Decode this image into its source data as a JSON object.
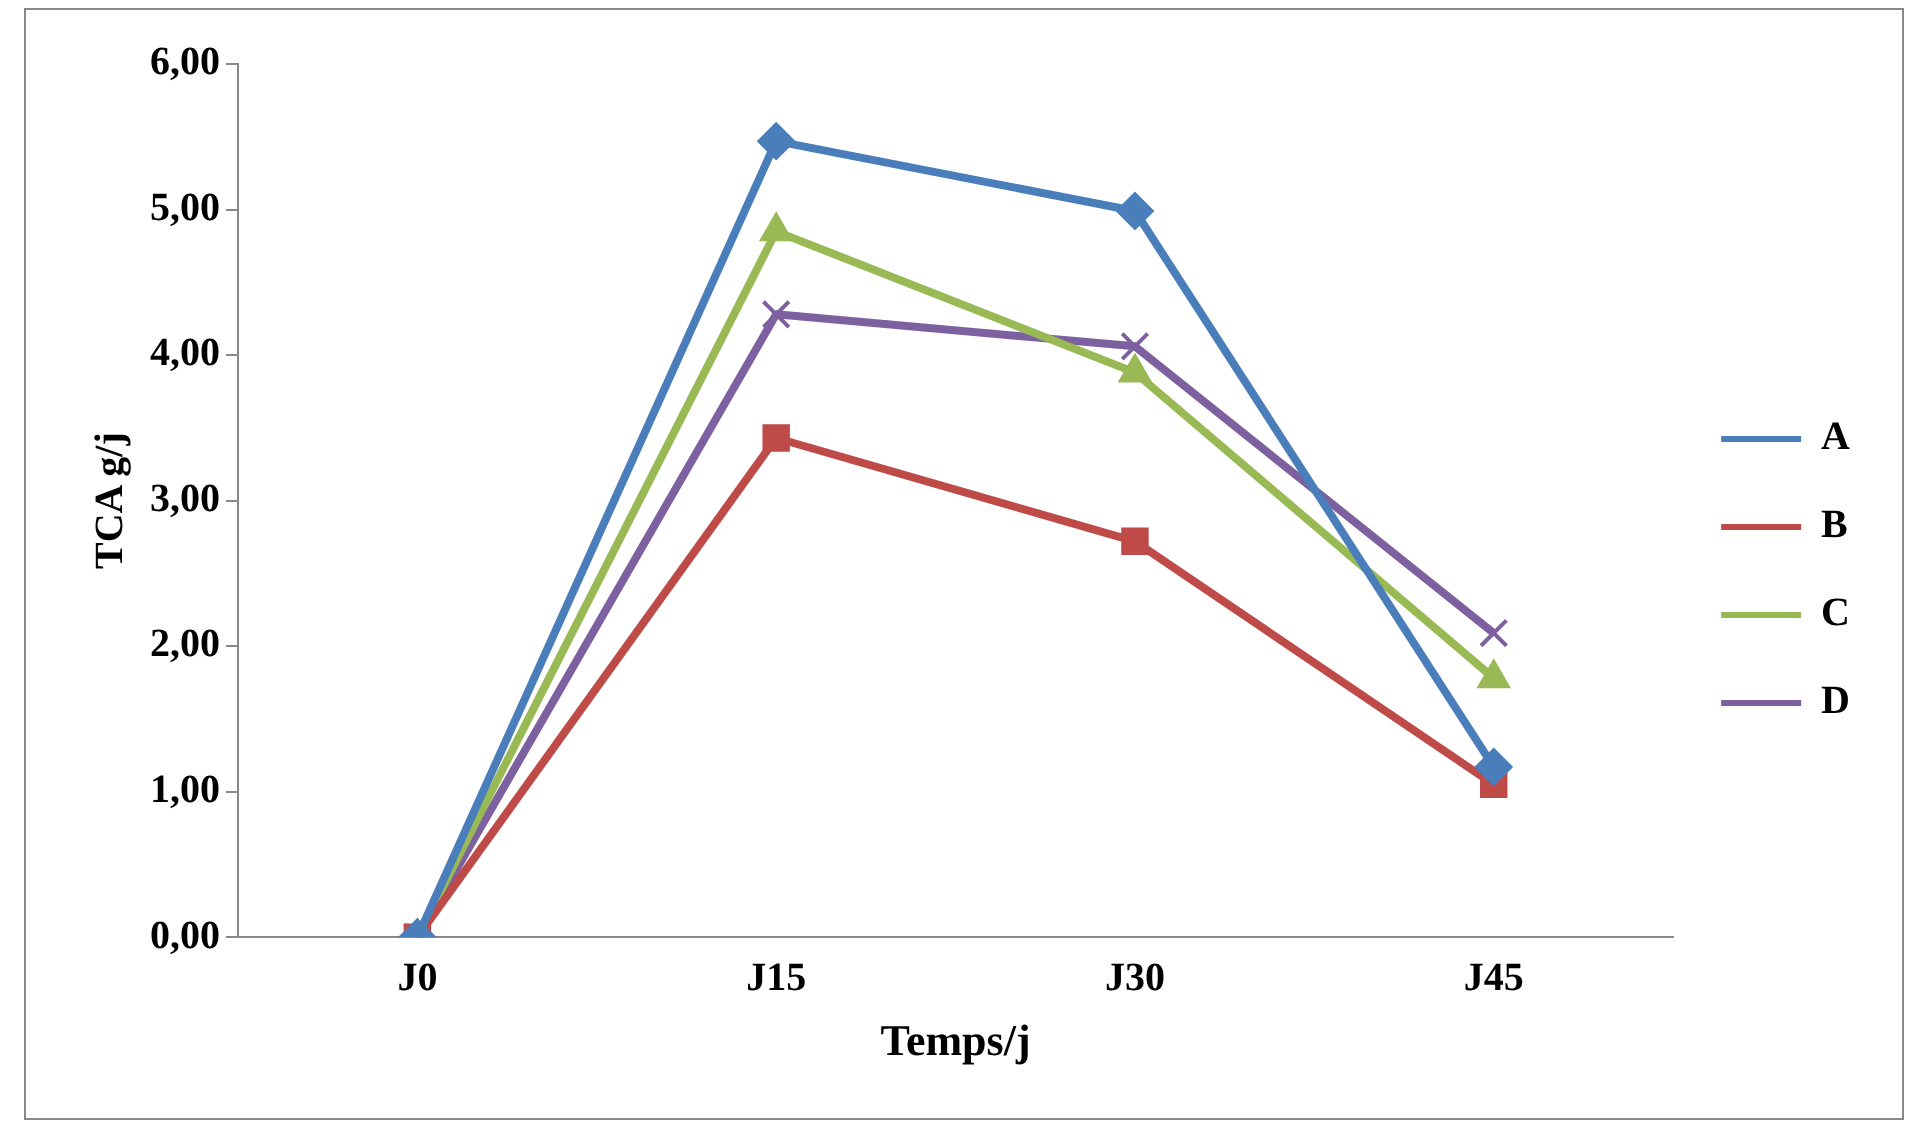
{
  "chart_data": {
    "type": "line",
    "xlabel": "Temps/j",
    "ylabel": "TCA g/j",
    "categories": [
      "J0",
      "J15",
      "J30",
      "J45"
    ],
    "series": [
      {
        "name": "A",
        "color": "#4a7ebb",
        "marker": "diamond",
        "values": [
          0,
          5.47,
          4.99,
          1.17
        ]
      },
      {
        "name": "B",
        "color": "#be4b48",
        "marker": "square",
        "values": [
          0,
          3.43,
          2.72,
          1.05
        ]
      },
      {
        "name": "C",
        "color": "#98b954",
        "marker": "triangle",
        "values": [
          0,
          4.85,
          3.88,
          1.78
        ]
      },
      {
        "name": "D",
        "color": "#7d60a0",
        "marker": "cross",
        "values": [
          0,
          4.28,
          4.06,
          2.09
        ]
      }
    ],
    "ylim": [
      0,
      6
    ],
    "yticks": [
      {
        "value": 0,
        "label": "0,00"
      },
      {
        "value": 1,
        "label": "1,00"
      },
      {
        "value": 2,
        "label": "2,00"
      },
      {
        "value": 3,
        "label": "3,00"
      },
      {
        "value": 4,
        "label": "4,00"
      },
      {
        "value": 5,
        "label": "5,00"
      },
      {
        "value": 6,
        "label": "6,00"
      }
    ],
    "grid": false,
    "legend": "right",
    "line_style": "solid"
  }
}
